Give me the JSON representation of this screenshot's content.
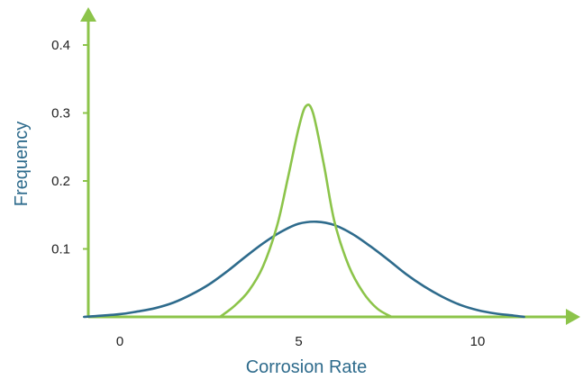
{
  "chart_data": {
    "type": "line",
    "title": "",
    "xlabel": "Corrosion Rate",
    "ylabel": "Frequency",
    "xlim": [
      -1,
      11.6
    ],
    "ylim": [
      0,
      0.4
    ],
    "x_ticks": [
      0,
      5,
      10
    ],
    "x_tick_labels": [
      "0",
      "5",
      "10"
    ],
    "y_ticks": [
      0.1,
      0.2,
      0.3,
      0.4
    ],
    "y_tick_labels": [
      "0.1",
      "0.2",
      "0.3",
      "0.4"
    ],
    "grid": false,
    "legend": "none",
    "series": [
      {
        "color": "#2e6b8c",
        "x": [
          -1,
          0,
          0.5,
          1,
          1.5,
          2,
          2.5,
          3,
          3.5,
          4,
          4.5,
          5,
          5.5,
          6,
          6.5,
          7,
          7.5,
          8,
          8.5,
          9,
          9.5,
          10,
          10.5,
          11,
          11.3
        ],
        "values": [
          0,
          0.004,
          0.008,
          0.013,
          0.021,
          0.033,
          0.048,
          0.067,
          0.088,
          0.108,
          0.125,
          0.137,
          0.14,
          0.135,
          0.122,
          0.104,
          0.084,
          0.063,
          0.045,
          0.03,
          0.018,
          0.01,
          0.005,
          0.002,
          0
        ]
      },
      {
        "color": "#8cc44a",
        "x": [
          2.8,
          3.2,
          3.6,
          4.0,
          4.4,
          4.7,
          5.0,
          5.2,
          5.4,
          5.7,
          6.0,
          6.4,
          6.8,
          7.2,
          7.6
        ],
        "values": [
          0,
          0.016,
          0.038,
          0.074,
          0.135,
          0.205,
          0.278,
          0.31,
          0.3,
          0.225,
          0.14,
          0.075,
          0.036,
          0.012,
          0
        ]
      }
    ]
  },
  "style": {
    "axis_color": "#8cc44a",
    "axis_title_color": "#2e6b8c"
  }
}
